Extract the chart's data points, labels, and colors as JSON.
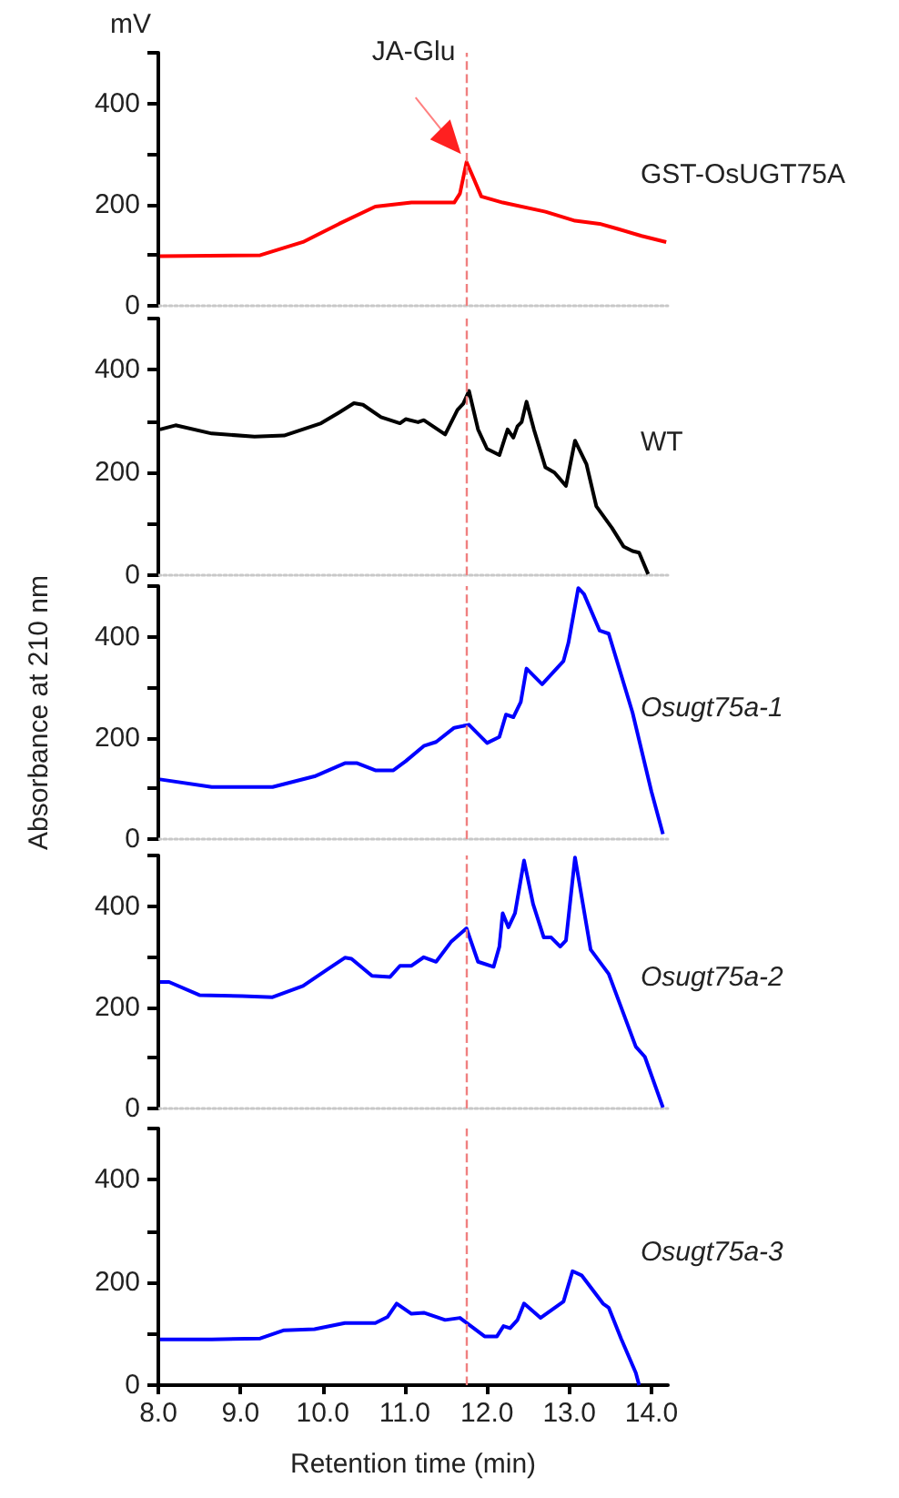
{
  "chart_data": [
    {
      "type": "line",
      "ylabel": "mV",
      "xlim": [
        8,
        14.2
      ],
      "ylim": [
        0,
        500
      ],
      "yticks": [
        0,
        {
          "value": 100,
          "label": null
        },
        200,
        {
          "value": 300,
          "label": null
        },
        400,
        {
          "value": 500,
          "label": null
        }
      ],
      "tick_labels": "y",
      "legend": false,
      "grid": false,
      "marker": "none",
      "ref_lines": [
        {
          "axis": "x",
          "value": 11.75,
          "label": "JA-Glu",
          "color": "#f08080",
          "line_style": "dashed"
        }
      ],
      "series": [
        {
          "name": "GST-OsUGT75A",
          "color": "#ff0000",
          "x": [
            8.02,
            9.24,
            9.76,
            10.2,
            10.64,
            11.08,
            11.6,
            11.67,
            11.75,
            11.82,
            11.93,
            12.19,
            12.71,
            13.07,
            13.37,
            13.59,
            13.88,
            14.18
          ],
          "values": [
            98,
            100,
            126,
            162,
            196,
            204,
            204,
            222,
            284,
            258,
            216,
            204,
            186,
            168,
            162,
            152,
            138,
            126
          ]
        }
      ]
    },
    {
      "type": "line",
      "xlim": [
        8,
        14.2
      ],
      "ylim": [
        0,
        500
      ],
      "yticks": [
        0,
        {
          "value": 100,
          "label": null
        },
        200,
        {
          "value": 300,
          "label": null
        },
        400,
        {
          "value": 500,
          "label": null
        }
      ],
      "tick_labels": "y",
      "legend": false,
      "grid": false,
      "marker": "none",
      "ref_lines": [
        {
          "axis": "x",
          "value": 11.75,
          "color": "#f08080",
          "line_style": "dashed"
        }
      ],
      "series": [
        {
          "name": "WT",
          "color": "#000000",
          "x": [
            8.02,
            8.21,
            8.65,
            9.17,
            9.53,
            9.98,
            10.2,
            10.38,
            10.49,
            10.71,
            10.94,
            11.01,
            11.16,
            11.23,
            11.49,
            11.64,
            11.71,
            11.78,
            11.89,
            12.0,
            12.15,
            12.25,
            12.32,
            12.37,
            12.42,
            12.48,
            12.57,
            12.71,
            12.82,
            12.96,
            13.07,
            13.21,
            13.33,
            13.52,
            13.66,
            13.77,
            13.85,
            13.96
          ],
          "values": [
            284,
            292,
            276,
            270,
            272,
            296,
            317,
            335,
            332,
            308,
            296,
            304,
            298,
            302,
            274,
            322,
            334,
            359,
            284,
            246,
            234,
            284,
            268,
            290,
            298,
            338,
            284,
            210,
            200,
            174,
            262,
            216,
            134,
            92,
            56,
            47,
            44,
            2
          ]
        }
      ]
    },
    {
      "type": "line",
      "ylabel": "Absorbance at 210 nm",
      "xlim": [
        8,
        14.2
      ],
      "ylim": [
        0,
        500
      ],
      "yticks": [
        0,
        {
          "value": 100,
          "label": null
        },
        200,
        {
          "value": 300,
          "label": null
        },
        400,
        {
          "value": 500,
          "label": null
        }
      ],
      "tick_labels": "y",
      "legend": false,
      "grid": false,
      "marker": "none",
      "ref_lines": [
        {
          "axis": "x",
          "value": 11.75,
          "color": "#f08080",
          "line_style": "dashed"
        }
      ],
      "series": [
        {
          "name": "Osugt75a-1",
          "color": "#0000ff",
          "x": [
            8.02,
            8.65,
            9.39,
            9.9,
            10.27,
            10.42,
            10.64,
            10.86,
            11.01,
            11.23,
            11.38,
            11.6,
            11.78,
            12.0,
            12.15,
            12.23,
            12.32,
            12.41,
            12.48,
            12.67,
            12.93,
            12.99,
            13.11,
            13.18,
            13.37,
            13.48,
            13.77,
            14.0,
            14.14
          ],
          "values": [
            118,
            103,
            103,
            124,
            150,
            150,
            136,
            136,
            154,
            184,
            192,
            220,
            226,
            190,
            202,
            246,
            241,
            271,
            337,
            306,
            352,
            388,
            496,
            484,
            412,
            406,
            250,
            94,
            10
          ]
        }
      ]
    },
    {
      "type": "line",
      "xlim": [
        8,
        14.2
      ],
      "ylim": [
        0,
        500
      ],
      "yticks": [
        0,
        {
          "value": 100,
          "label": null
        },
        200,
        {
          "value": 300,
          "label": null
        },
        400,
        {
          "value": 500,
          "label": null
        }
      ],
      "tick_labels": "y",
      "legend": false,
      "grid": false,
      "marker": "none",
      "ref_lines": [
        {
          "axis": "x",
          "value": 11.75,
          "color": "#f08080",
          "line_style": "dashed"
        }
      ],
      "series": [
        {
          "name": "Osugt75a-2",
          "color": "#0000ff",
          "x": [
            8.02,
            8.13,
            8.5,
            9.02,
            9.39,
            9.76,
            10.05,
            10.27,
            10.35,
            10.6,
            10.82,
            10.94,
            11.08,
            11.23,
            11.38,
            11.56,
            11.75,
            11.89,
            12.08,
            12.15,
            12.19,
            12.26,
            12.34,
            12.45,
            12.56,
            12.69,
            12.78,
            12.89,
            12.96,
            13.07,
            13.26,
            13.48,
            13.81,
            13.92,
            14.14
          ],
          "values": [
            250,
            250,
            224,
            222,
            220,
            242,
            274,
            298,
            296,
            262,
            260,
            282,
            282,
            299,
            290,
            329,
            356,
            290,
            280,
            320,
            386,
            358,
            386,
            490,
            404,
            338,
            338,
            320,
            332,
            496,
            314,
            266,
            122,
            102,
            2
          ]
        }
      ]
    },
    {
      "type": "line",
      "xlabel": "Retention time (min)",
      "xlim": [
        8,
        14.2
      ],
      "xticks": [
        {
          "value": 8,
          "label": "8.0"
        },
        {
          "value": 9,
          "label": "9.0"
        },
        {
          "value": 10,
          "label": "10.0"
        },
        {
          "value": 11,
          "label": "11.0"
        },
        {
          "value": 12,
          "label": "12.0"
        },
        {
          "value": 13,
          "label": "13.0"
        },
        {
          "value": 14,
          "label": "14.0"
        }
      ],
      "ylim": [
        0,
        500
      ],
      "yticks": [
        0,
        {
          "value": 100,
          "label": null
        },
        200,
        {
          "value": 300,
          "label": null
        },
        400,
        {
          "value": 500,
          "label": null
        }
      ],
      "legend": false,
      "grid": false,
      "marker": "none",
      "ref_lines": [
        {
          "axis": "x",
          "value": 11.75,
          "color": "#f08080",
          "line_style": "dashed"
        }
      ],
      "series": [
        {
          "name": "Osugt75a-3",
          "color": "#0000ff",
          "x": [
            8.02,
            8.65,
            9.24,
            9.53,
            9.9,
            10.27,
            10.64,
            10.79,
            10.9,
            11.08,
            11.23,
            11.49,
            11.67,
            11.97,
            12.12,
            12.2,
            12.28,
            12.37,
            12.45,
            12.65,
            12.93,
            13.04,
            13.15,
            13.41,
            13.48,
            13.63,
            13.81,
            13.85
          ],
          "values": [
            89,
            89,
            91,
            107,
            109,
            121,
            121,
            133,
            159,
            139,
            141,
            127,
            131,
            95,
            95,
            115,
            111,
            127,
            159,
            131,
            163,
            222,
            214,
            159,
            151,
            91,
            24,
            0
          ]
        }
      ]
    }
  ]
}
